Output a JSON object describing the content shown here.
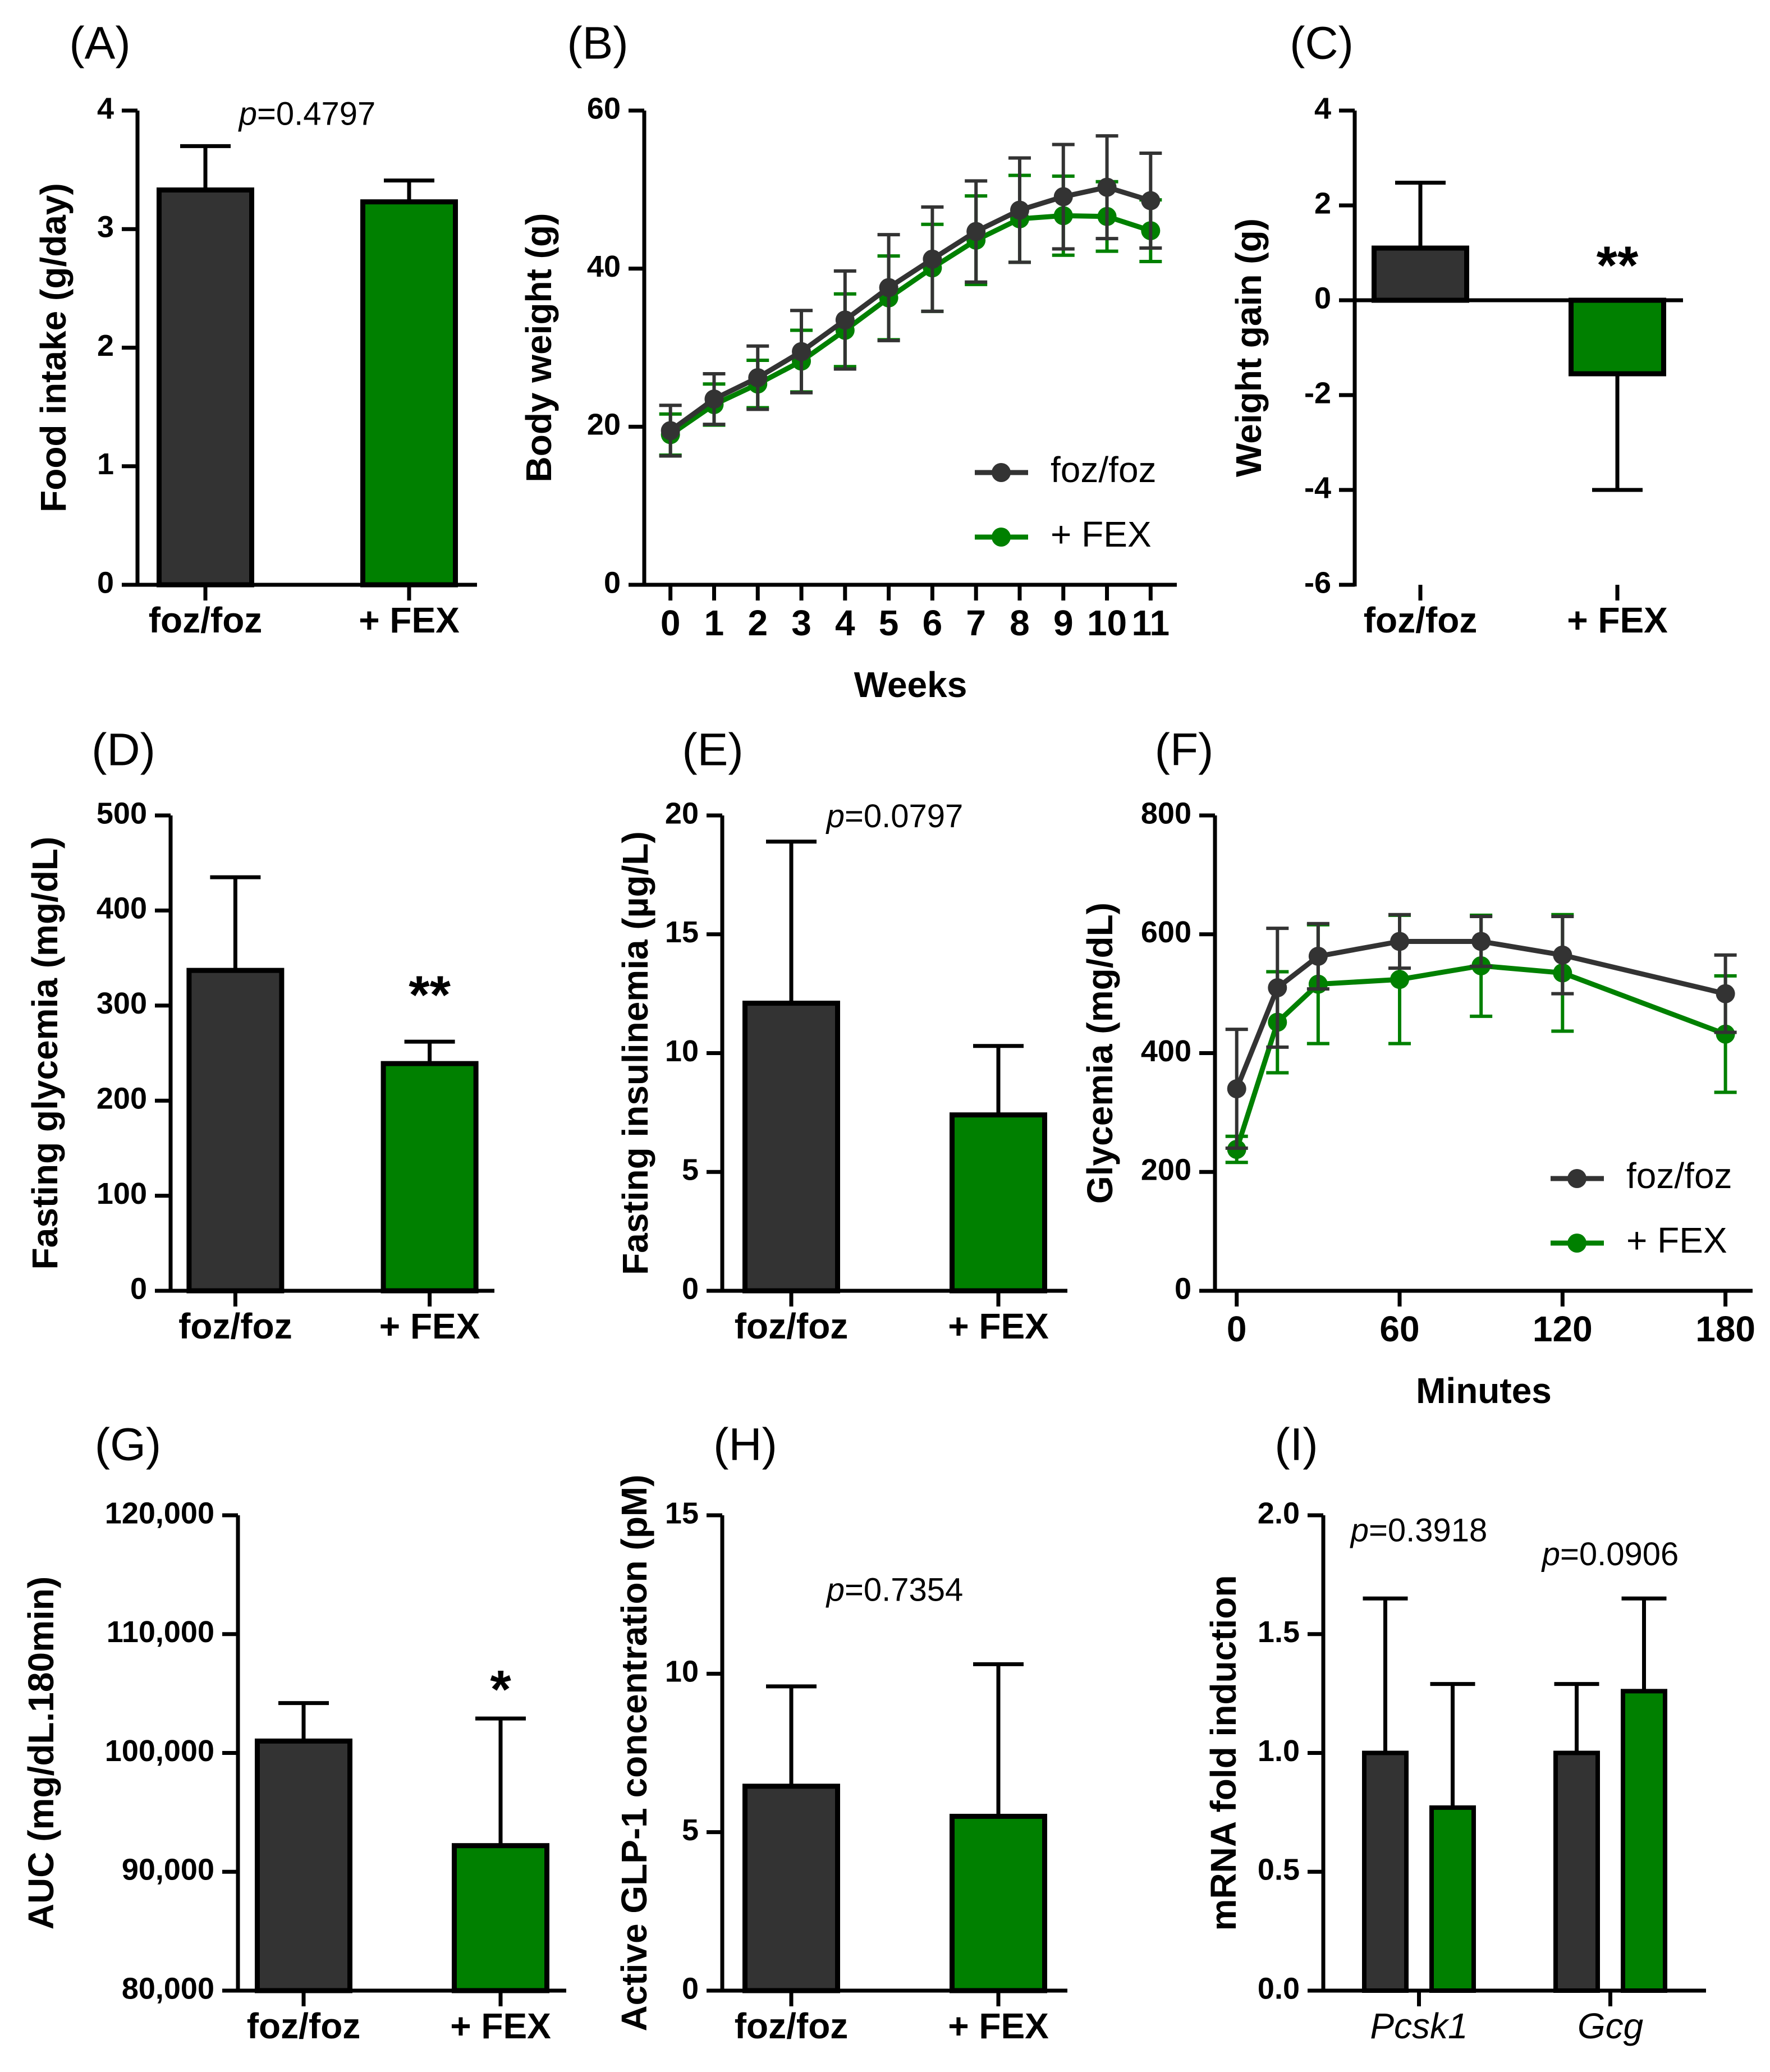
{
  "colors": {
    "control": "#333333",
    "treated": "#008000",
    "axis": "#000000"
  },
  "chart_data": [
    {
      "id": "A",
      "panel_label": "(A)",
      "type": "bar",
      "ylabel": "Food intake (g/day)",
      "xlabel": "",
      "ylim": [
        0,
        4
      ],
      "yticks": [
        0,
        1,
        2,
        3,
        4
      ],
      "ytick_labels": [
        "0",
        "1",
        "2",
        "3",
        "4"
      ],
      "categories": [
        "foz/foz",
        "+ FEX"
      ],
      "values": [
        3.33,
        3.23
      ],
      "errors": [
        0.37,
        0.18
      ],
      "bar_colors": [
        "control",
        "treated"
      ],
      "annotations": [
        {
          "italic": "p",
          "rest": "=0.4797",
          "x": 0.5,
          "y": 3.88
        }
      ]
    },
    {
      "id": "B",
      "panel_label": "(B)",
      "type": "line",
      "ylabel": "Body weight (g)",
      "xlabel": "Weeks",
      "ylim": [
        0,
        60
      ],
      "yticks": [
        0,
        20,
        40,
        60
      ],
      "ytick_labels": [
        "0",
        "20",
        "40",
        "60"
      ],
      "xlim": [
        -0.6,
        11.6
      ],
      "x": [
        0,
        1,
        2,
        3,
        4,
        5,
        6,
        7,
        8,
        9,
        10,
        11
      ],
      "xtick_labels": [
        "0",
        "1",
        "2",
        "3",
        "4",
        "5",
        "6",
        "7",
        "8",
        "9",
        "10",
        "11"
      ],
      "series": [
        {
          "name": "foz/foz",
          "color": "control",
          "values": [
            19.5,
            23.5,
            26.2,
            29.5,
            33.5,
            37.6,
            41.2,
            44.7,
            47.4,
            49.1,
            50.3,
            48.6
          ],
          "errors": [
            3.2,
            3.2,
            4.0,
            5.2,
            6.2,
            6.7,
            6.6,
            6.4,
            6.6,
            6.6,
            6.5,
            6.0
          ]
        },
        {
          "name": "+ FEX",
          "color": "treated",
          "values": [
            19.0,
            22.8,
            25.4,
            28.3,
            32.2,
            36.3,
            40.1,
            43.6,
            46.3,
            46.7,
            46.6,
            44.8
          ],
          "errors": [
            2.6,
            2.6,
            3.0,
            3.9,
            4.6,
            5.3,
            5.5,
            5.6,
            5.5,
            5.0,
            4.4,
            3.9
          ]
        }
      ],
      "legend_position": "bottom-right"
    },
    {
      "id": "C",
      "panel_label": "(C)",
      "type": "bar",
      "ylabel": "Weight gain (g)",
      "xlabel": "",
      "ylim": [
        -6,
        4
      ],
      "yticks": [
        -6,
        -4,
        -2,
        0,
        2,
        4
      ],
      "ytick_labels": [
        "-6",
        "-4",
        "-2",
        "0",
        "2",
        "4"
      ],
      "categories": [
        "foz/foz",
        "+ FEX"
      ],
      "values": [
        1.1,
        -1.55
      ],
      "errors": [
        1.38,
        2.45
      ],
      "bar_colors": [
        "control",
        "treated"
      ],
      "annotations": [
        {
          "stars": "**",
          "x": 1,
          "y": 0.35
        }
      ]
    },
    {
      "id": "D",
      "panel_label": "(D)",
      "type": "bar",
      "ylabel": "Fasting glycemia (mg/dL)",
      "xlabel": "",
      "ylim": [
        0,
        500
      ],
      "yticks": [
        0,
        100,
        200,
        300,
        400,
        500
      ],
      "ytick_labels": [
        "0",
        "100",
        "200",
        "300",
        "400",
        "500"
      ],
      "categories": [
        "foz/foz",
        "+ FEX"
      ],
      "values": [
        337,
        239
      ],
      "errors": [
        98,
        23
      ],
      "bar_colors": [
        "control",
        "treated"
      ],
      "annotations": [
        {
          "stars": "**",
          "x": 1,
          "y": 292
        }
      ]
    },
    {
      "id": "E",
      "panel_label": "(E)",
      "type": "bar",
      "ylabel": "Fasting insulinemia (µg/L)",
      "xlabel": "",
      "ylim": [
        0,
        20
      ],
      "yticks": [
        0,
        5,
        10,
        15,
        20
      ],
      "ytick_labels": [
        "0",
        "5",
        "10",
        "15",
        "20"
      ],
      "categories": [
        "foz/foz",
        "+ FEX"
      ],
      "values": [
        12.1,
        7.4
      ],
      "errors": [
        6.8,
        2.9
      ],
      "bar_colors": [
        "control",
        "treated"
      ],
      "annotations": [
        {
          "italic": "p",
          "rest": "=0.0797",
          "x": 0.5,
          "y": 19.5
        }
      ]
    },
    {
      "id": "F",
      "panel_label": "(F)",
      "type": "line",
      "ylabel": "Glycemia (mg/dL)",
      "xlabel": "Minutes",
      "ylim": [
        0,
        800
      ],
      "yticks": [
        0,
        200,
        400,
        600,
        800
      ],
      "ytick_labels": [
        "0",
        "200",
        "400",
        "600",
        "800"
      ],
      "xlim": [
        -8,
        190
      ],
      "xticks": [
        0,
        60,
        120,
        180
      ],
      "xtick_labels": [
        "0",
        "60",
        "120",
        "180"
      ],
      "x": [
        0,
        15,
        30,
        60,
        90,
        120,
        180
      ],
      "series": [
        {
          "name": "foz/foz",
          "color": "control",
          "values": [
            340,
            510,
            563,
            588,
            588,
            565,
            500
          ],
          "errors": [
            100,
            100,
            55,
            45,
            42,
            65,
            65
          ]
        },
        {
          "name": "+ FEX",
          "color": "treated",
          "values": [
            238,
            452,
            516,
            524,
            547,
            535,
            432
          ],
          "errors": [
            22,
            85,
            100,
            108,
            85,
            98,
            98
          ]
        }
      ],
      "legend_position": "bottom-right"
    },
    {
      "id": "G",
      "panel_label": "(G)",
      "type": "bar",
      "ylabel": "AUC (mg/dL.180min)",
      "xlabel": "",
      "ylim": [
        80000,
        120000
      ],
      "yticks": [
        80000,
        90000,
        100000,
        110000,
        120000
      ],
      "ytick_labels": [
        "80,000",
        "90,000",
        "100,000",
        "110,000",
        "120,000"
      ],
      "categories": [
        "foz/foz",
        "+ FEX"
      ],
      "values": [
        101000,
        92200
      ],
      "errors": [
        3200,
        10700
      ],
      "bar_colors": [
        "control",
        "treated"
      ],
      "annotations": [
        {
          "stars": "*",
          "x": 1,
          "y": 103800
        }
      ]
    },
    {
      "id": "H",
      "panel_label": "(H)",
      "type": "bar",
      "ylabel": "Active GLP-1 concentration (pM)",
      "xlabel": "",
      "ylim": [
        0,
        15
      ],
      "yticks": [
        0,
        5,
        10,
        15
      ],
      "ytick_labels": [
        "0",
        "5",
        "10",
        "15"
      ],
      "categories": [
        "foz/foz",
        "+ FEX"
      ],
      "values": [
        6.45,
        5.5
      ],
      "errors": [
        3.15,
        4.8
      ],
      "bar_colors": [
        "control",
        "treated"
      ],
      "annotations": [
        {
          "italic": "p",
          "rest": "=0.7354",
          "x": 0.5,
          "y": 12.3
        }
      ]
    },
    {
      "id": "I",
      "panel_label": "(I)",
      "type": "bar-grouped",
      "ylabel": "mRNA fold induction",
      "xlabel": "",
      "ylim": [
        0,
        2
      ],
      "yticks": [
        0,
        0.5,
        1,
        1.5,
        2
      ],
      "ytick_labels": [
        "0.0",
        "0.5",
        "1.0",
        "1.5",
        "2.0"
      ],
      "categories": [
        "Pcsk1",
        "Gcg"
      ],
      "series": [
        {
          "name": "foz/foz",
          "color": "control",
          "values": [
            1.0,
            1.0
          ],
          "errors": [
            0.65,
            0.29
          ]
        },
        {
          "name": "+ FEX",
          "color": "treated",
          "values": [
            0.77,
            1.26
          ],
          "errors": [
            0.52,
            0.39
          ]
        }
      ],
      "annotations": [
        {
          "italic": "p",
          "rest": "=0.3918",
          "x": 0,
          "y": 1.89
        },
        {
          "italic": "p",
          "rest": "=0.0906",
          "x": 1,
          "y": 1.79
        }
      ]
    }
  ]
}
